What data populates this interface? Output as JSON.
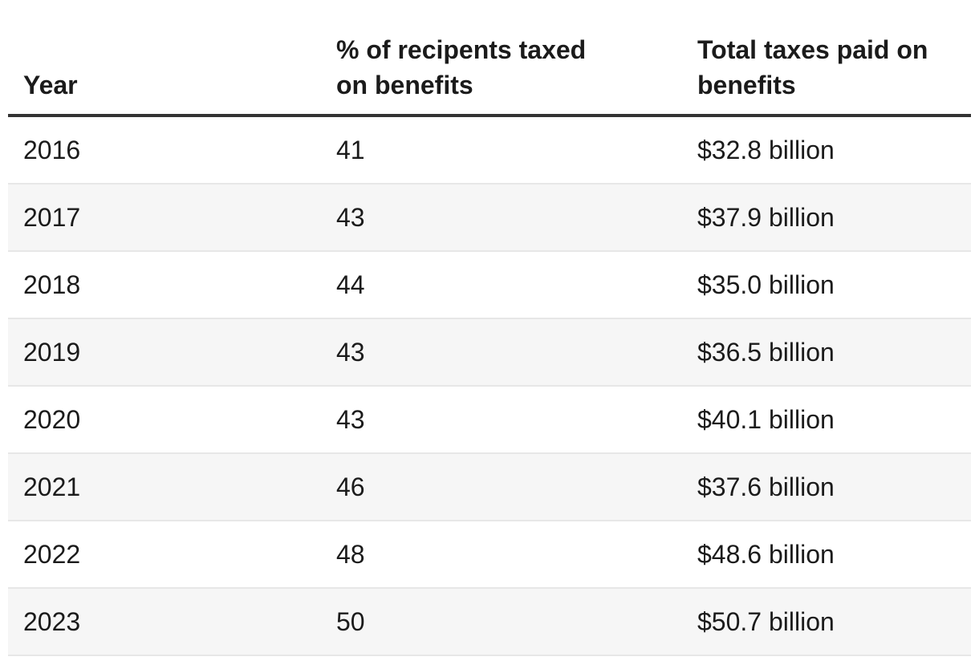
{
  "table": {
    "columns": [
      "Year",
      "% of recipents taxed\non benefits",
      "Total taxes paid on\nbenefits"
    ],
    "rows": [
      [
        "2016",
        "41",
        "$32.8 billion"
      ],
      [
        "2017",
        "43",
        "$37.9 billion"
      ],
      [
        "2018",
        "44",
        "$35.0 billion"
      ],
      [
        "2019",
        "43",
        "$36.5 billion"
      ],
      [
        "2020",
        "43",
        "$40.1 billion"
      ],
      [
        "2021",
        "46",
        "$37.6 billion"
      ],
      [
        "2022",
        "48",
        "$48.6 billion"
      ],
      [
        "2023",
        "50",
        "$50.7 billion"
      ]
    ]
  },
  "chart_data": {
    "type": "table",
    "columns": [
      "Year",
      "% of recipents taxed on benefits",
      "Total taxes paid on benefits"
    ],
    "years": [
      2016,
      2017,
      2018,
      2019,
      2020,
      2021,
      2022,
      2023
    ],
    "pct_of_recipients_taxed": [
      41,
      43,
      44,
      43,
      43,
      46,
      48,
      50
    ],
    "total_taxes_paid_billions_usd": [
      32.8,
      37.9,
      35.0,
      36.5,
      40.1,
      37.6,
      48.6,
      50.7
    ],
    "total_taxes_paid_labels": [
      "$32.8 billion",
      "$37.9 billion",
      "$35.0 billion",
      "$36.5 billion",
      "$40.1 billion",
      "$37.6 billion",
      "$48.6 billion",
      "$50.7 billion"
    ],
    "layout": "zebra-striped table, dark rule under header row, alternating light-gray rows starting at second data row"
  },
  "colors": {
    "text_color": "#1b1b1b",
    "header_border": "#333333",
    "row_stripe": "#f6f6f6",
    "row_border": "#e7e7e7",
    "page_bg": "#ffffff"
  }
}
